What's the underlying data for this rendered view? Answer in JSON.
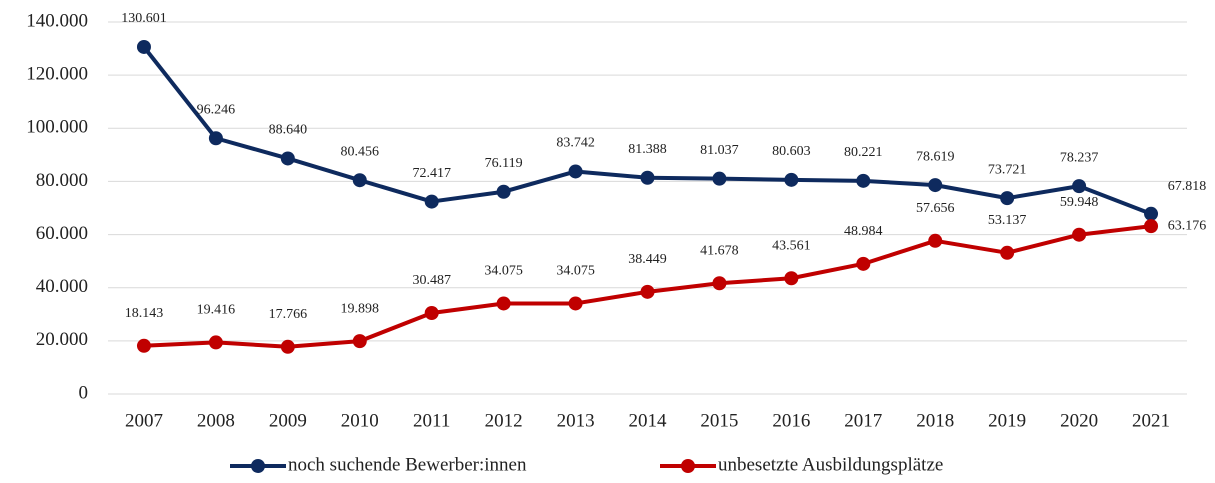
{
  "chart_data": {
    "type": "line",
    "categories": [
      "2007",
      "2008",
      "2009",
      "2010",
      "2011",
      "2012",
      "2013",
      "2014",
      "2015",
      "2016",
      "2017",
      "2018",
      "2019",
      "2020",
      "2021"
    ],
    "series": [
      {
        "name": "noch suchende Bewerber:innen",
        "color": "#0e2a5e",
        "values": [
          130601,
          96246,
          88640,
          80456,
          72417,
          76119,
          83742,
          81388,
          81037,
          80603,
          80221,
          78619,
          73721,
          78237,
          67818
        ],
        "value_labels": [
          "130.601",
          "96.246",
          "88.640",
          "80.456",
          "72.417",
          "76.119",
          "83.742",
          "81.388",
          "81.037",
          "80.603",
          "80.221",
          "78.619",
          "73.721",
          "78.237",
          "67.818"
        ]
      },
      {
        "name": "unbesetzte Ausbildungsplätze",
        "color": "#c00000",
        "values": [
          18143,
          19416,
          17766,
          19898,
          30487,
          34075,
          34075,
          38449,
          41678,
          43561,
          48984,
          57656,
          53137,
          59948,
          63176
        ],
        "value_labels": [
          "18.143",
          "19.416",
          "17.766",
          "19.898",
          "30.487",
          "34.075",
          "34.075",
          "38.449",
          "41.678",
          "43.561",
          "48.984",
          "57.656",
          "53.137",
          "59.948",
          "63.176"
        ]
      }
    ],
    "ylim": [
      0,
      140000
    ],
    "yticks": [
      0,
      {
        "value": 20000,
        "label": "20.000"
      },
      {
        "value": 40000,
        "label": "40.000"
      },
      {
        "value": 60000,
        "label": "60.000"
      },
      {
        "value": 80000,
        "label": "80.000"
      },
      {
        "value": 100000,
        "label": "100.000"
      },
      {
        "value": 120000,
        "label": "120.000"
      },
      {
        "value": 140000,
        "label": "140.000"
      }
    ],
    "grid": true,
    "legend": "bottom"
  }
}
